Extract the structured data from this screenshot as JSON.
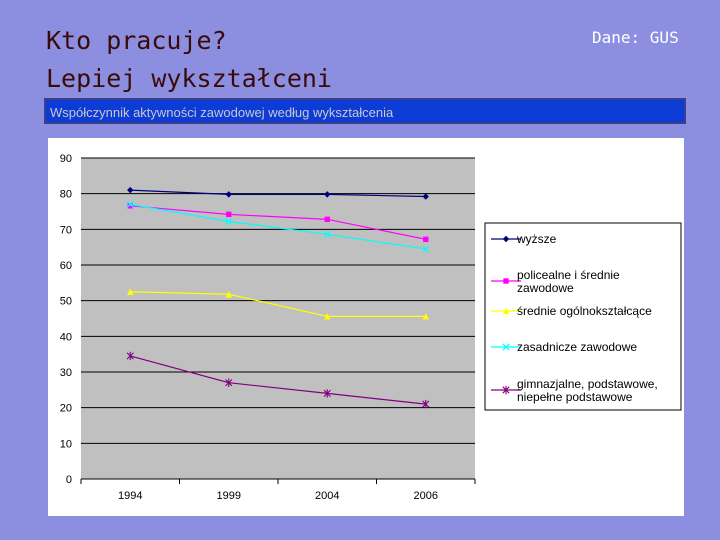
{
  "slide": {
    "title_line1": "Kto pracuje?",
    "title_line2": "Lepiej wykształceni",
    "source": "Dane: GUS",
    "banner": "Współczynnik aktywności zawodowej według wykształcenia"
  },
  "chart_data": {
    "type": "line",
    "title": "Współczynnik aktywności zawodowej według wykształcenia",
    "categories": [
      "1994",
      "1999",
      "2004",
      "2006"
    ],
    "ylim": [
      0,
      90
    ],
    "yticks": [
      0,
      10,
      20,
      30,
      40,
      50,
      60,
      70,
      80,
      90
    ],
    "grid": true,
    "legend_position": "right",
    "series": [
      {
        "name": "wyższe",
        "values": [
          81,
          79.8,
          79.8,
          79.2
        ],
        "color": "#00007f",
        "marker": "diamond"
      },
      {
        "name": "policealne i średnie zawodowe",
        "values": [
          76.6,
          74.2,
          72.8,
          67.2
        ],
        "color": "#ff00ff",
        "marker": "square"
      },
      {
        "name": "średnie ogólnokształcące",
        "values": [
          52.5,
          51.8,
          45.6,
          45.6
        ],
        "color": "#ffff00",
        "marker": "triangle"
      },
      {
        "name": "zasadnicze zawodowe",
        "values": [
          77,
          72.2,
          68.6,
          64.5
        ],
        "color": "#00ffff",
        "marker": "x"
      },
      {
        "name": "gimnazjalne, podstawowe, niepełne podstawowe",
        "values": [
          34.5,
          27,
          24,
          21
        ],
        "color": "#800080",
        "marker": "star"
      }
    ],
    "legend_lines": [
      [
        "wyższe"
      ],
      [
        "policealne i średnie",
        "zawodowe"
      ],
      [
        "średnie ogólnokształcące"
      ],
      [
        "zasadnicze zawodowe"
      ],
      [
        "gimnazjalne, podstawowe,",
        "niepełne podstawowe"
      ]
    ]
  }
}
